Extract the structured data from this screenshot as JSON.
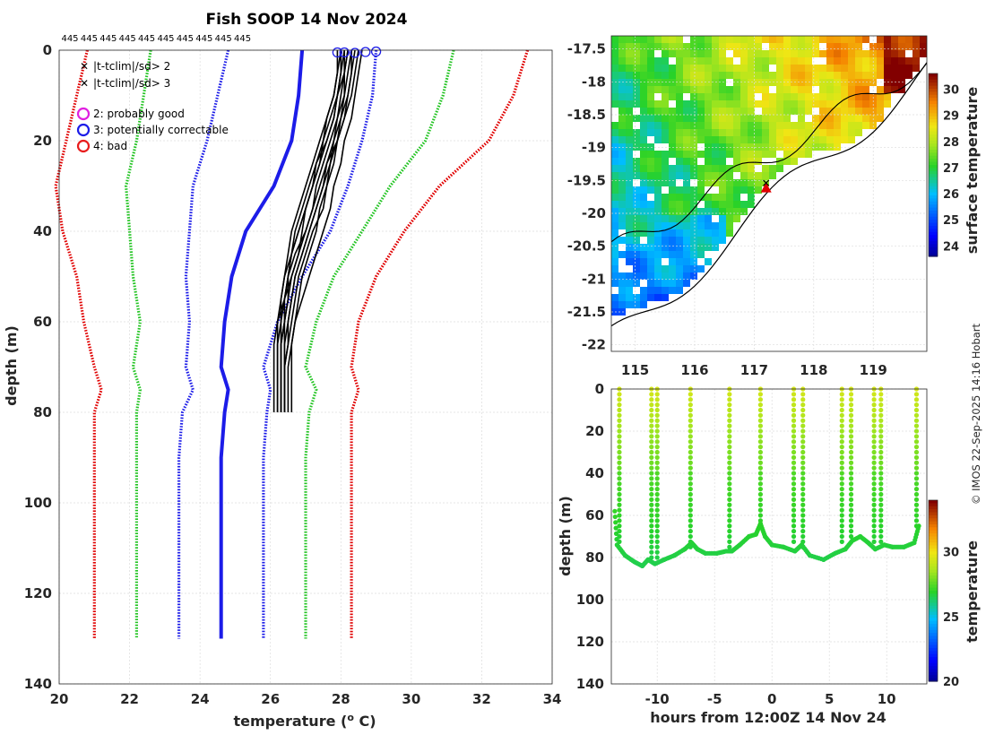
{
  "title": "Fish SOOP 14 Nov 2024",
  "credit": "© IMOS 22-Sep-2025 14:16 Hobart",
  "profile_counts": [
    "445",
    "445",
    "445",
    "445",
    "445",
    "445",
    "445",
    "445",
    "445",
    "445"
  ],
  "legend": {
    "flags": [
      {
        "label": "|t-tclim|/sd> 2",
        "color": "#22c422",
        "marker": "x"
      },
      {
        "label": "|t-tclim|/sd> 3",
        "color": "#e00000",
        "marker": "x"
      }
    ],
    "qc": [
      {
        "label": "2: probably good",
        "color": "#e020e0"
      },
      {
        "label": "3: potentially correctable",
        "color": "#1c1ce8"
      },
      {
        "label": "4: bad",
        "color": "#e81c1c"
      }
    ]
  },
  "map_colorbar": {
    "label": "surface temperature",
    "ticks": [
      "24",
      "25",
      "26",
      "27",
      "28",
      "29",
      "30"
    ],
    "range": [
      23.6,
      30.6
    ]
  },
  "section_colorbar": {
    "label": "temperature",
    "ticks": [
      "20",
      "25",
      "30"
    ],
    "range": [
      20,
      34
    ]
  },
  "chart_data": [
    {
      "type": "line",
      "name": "temperature-profiles",
      "xlabel": "temperature (° C)",
      "ylabel": "depth (m)",
      "xlim": [
        20,
        34
      ],
      "ylim": [
        140,
        0
      ],
      "xticks": [
        "20",
        "22",
        "24",
        "26",
        "28",
        "30",
        "32",
        "34"
      ],
      "yticks": [
        "0",
        "20",
        "40",
        "60",
        "80",
        "100",
        "120",
        "140"
      ],
      "depths": [
        0,
        10,
        20,
        30,
        40,
        50,
        60,
        70,
        75,
        80,
        90,
        100,
        110,
        120,
        130
      ],
      "series": [
        {
          "name": "clim-3sd-low",
          "color": "#e00000",
          "style": "dotted",
          "values": [
            20.8,
            20.5,
            20.2,
            19.9,
            20.1,
            20.5,
            20.7,
            21.0,
            21.2,
            21.0,
            21.0,
            21.0,
            21.0,
            21.0,
            21.0
          ]
        },
        {
          "name": "clim-2sd-low",
          "color": "#22c422",
          "style": "dotted",
          "values": [
            22.6,
            22.4,
            22.2,
            21.9,
            22.0,
            22.1,
            22.3,
            22.1,
            22.3,
            22.2,
            22.2,
            22.2,
            22.2,
            22.2,
            22.2
          ]
        },
        {
          "name": "clim-1sd-low",
          "color": "#1c1ce8",
          "style": "dotted",
          "values": [
            24.8,
            24.5,
            24.2,
            23.8,
            23.7,
            23.6,
            23.7,
            23.6,
            23.8,
            23.5,
            23.4,
            23.4,
            23.4,
            23.4,
            23.4
          ]
        },
        {
          "name": "clim-mean",
          "color": "#1c1ce8",
          "style": "solid",
          "values": [
            26.9,
            26.8,
            26.6,
            26.1,
            25.3,
            24.9,
            24.7,
            24.6,
            24.8,
            24.7,
            24.6,
            24.6,
            24.6,
            24.6,
            24.6
          ]
        },
        {
          "name": "clim-1sd-high",
          "color": "#1c1ce8",
          "style": "dotted",
          "values": [
            29.0,
            28.9,
            28.6,
            28.2,
            27.7,
            26.9,
            26.2,
            25.8,
            26.0,
            25.9,
            25.8,
            25.8,
            25.8,
            25.8,
            25.8
          ]
        },
        {
          "name": "clim-2sd-high",
          "color": "#22c422",
          "style": "dotted",
          "values": [
            31.2,
            30.9,
            30.4,
            29.4,
            28.6,
            27.8,
            27.3,
            27.0,
            27.3,
            27.1,
            27.0,
            27.0,
            27.0,
            27.0,
            27.0
          ]
        },
        {
          "name": "clim-3sd-high",
          "color": "#e00000",
          "style": "dotted",
          "values": [
            33.3,
            32.9,
            32.2,
            30.8,
            29.8,
            29.0,
            28.5,
            28.3,
            28.5,
            28.3,
            28.3,
            28.3,
            28.3,
            28.3,
            28.3
          ]
        }
      ],
      "observed": {
        "color": "#000000",
        "depths": [
          0,
          5,
          10,
          15,
          20,
          25,
          30,
          35,
          40,
          45,
          50,
          55,
          60,
          65,
          70,
          75,
          80
        ],
        "profiles": [
          [
            28.1,
            28.0,
            27.9,
            27.8,
            27.6,
            27.4,
            27.2,
            27.0,
            26.8,
            26.6,
            26.5,
            26.4,
            26.3,
            26.3,
            26.3,
            26.3,
            26.3
          ],
          [
            28.3,
            28.2,
            28.1,
            28.0,
            27.8,
            27.7,
            27.5,
            27.3,
            27.1,
            26.9,
            26.7,
            26.6,
            26.5,
            26.4,
            26.4,
            26.4,
            26.4
          ],
          [
            27.9,
            27.9,
            27.8,
            27.6,
            27.4,
            27.2,
            27.0,
            26.8,
            26.6,
            26.5,
            26.4,
            26.3,
            26.3,
            26.2,
            26.2,
            26.2,
            26.2
          ],
          [
            28.5,
            28.4,
            28.3,
            28.1,
            27.9,
            27.8,
            27.6,
            27.5,
            27.2,
            27.0,
            26.8,
            26.7,
            26.6,
            26.5,
            26.4,
            26.4,
            26.4
          ],
          [
            28.0,
            28.0,
            27.9,
            27.7,
            27.5,
            27.3,
            27.2,
            27.0,
            26.9,
            26.8,
            26.6,
            26.4,
            26.2,
            26.1,
            26.1,
            26.1,
            26.1
          ],
          [
            28.2,
            28.1,
            28.0,
            27.9,
            27.7,
            27.5,
            27.3,
            27.2,
            27.0,
            26.7,
            26.5,
            26.4,
            26.4,
            26.3,
            26.3,
            26.3,
            26.3
          ],
          [
            28.4,
            28.3,
            28.2,
            28.0,
            27.9,
            27.7,
            27.6,
            27.4,
            27.3,
            27.1,
            26.9,
            26.8,
            26.7,
            26.6,
            26.6,
            26.6,
            26.6
          ],
          [
            28.1,
            28.1,
            27.9,
            27.8,
            27.6,
            27.3,
            27.1,
            26.9,
            26.7,
            26.6,
            26.5,
            26.5,
            26.4,
            26.4,
            26.4,
            26.4,
            26.4
          ],
          [
            28.6,
            28.5,
            28.4,
            28.3,
            28.1,
            28.0,
            27.8,
            27.7,
            27.5,
            27.3,
            27.1,
            26.9,
            26.7,
            26.6,
            26.5,
            26.5,
            26.5
          ],
          [
            28.0,
            27.9,
            27.8,
            27.6,
            27.5,
            27.4,
            27.2,
            27.0,
            26.8,
            26.6,
            26.4,
            26.3,
            26.2,
            26.2,
            26.2,
            26.2,
            26.2
          ],
          [
            28.3,
            28.3,
            28.2,
            28.1,
            27.9,
            27.6,
            27.4,
            27.2,
            27.0,
            26.8,
            26.6,
            26.5,
            26.4,
            26.3,
            26.3,
            26.3,
            26.3
          ],
          [
            28.2,
            28.1,
            28.1,
            27.9,
            27.8,
            27.6,
            27.5,
            27.3,
            27.1,
            26.9,
            26.7,
            26.6,
            26.5,
            26.5,
            26.4,
            26.4,
            26.4
          ]
        ],
        "qc_circles": [
          {
            "temp": 27.9,
            "depth": 0.5,
            "flag": 3
          },
          {
            "temp": 28.1,
            "depth": 0.5,
            "flag": 3
          },
          {
            "temp": 28.4,
            "depth": 0.6,
            "flag": 3
          },
          {
            "temp": 28.7,
            "depth": 0.4,
            "flag": 3
          },
          {
            "temp": 29.0,
            "depth": 0.3,
            "flag": 3
          }
        ]
      }
    },
    {
      "type": "heatmap",
      "name": "sst-map",
      "xlim": [
        114.6,
        119.9
      ],
      "ylim": [
        -22.1,
        -17.3
      ],
      "xticks": [
        "115",
        "116",
        "117",
        "118",
        "119"
      ],
      "yticks": [
        "-17.5",
        "-18",
        "-18.5",
        "-19",
        "-19.5",
        "-20",
        "-20.5",
        "-21",
        "-21.5",
        "-22"
      ],
      "value_range": [
        23.6,
        30.6
      ],
      "station": {
        "lon": 117.2,
        "lat": -19.6
      }
    },
    {
      "type": "scatter",
      "name": "depth-time-section",
      "xlabel": "hours from 12:00Z 14 Nov 24",
      "ylabel": "depth (m)",
      "xlim": [
        -14,
        13.5
      ],
      "ylim": [
        140,
        0
      ],
      "xticks": [
        "-10",
        "-5",
        "0",
        "5",
        "10"
      ],
      "yticks": [
        "0",
        "20",
        "40",
        "60",
        "80",
        "100",
        "120",
        "140"
      ],
      "bottom_track": {
        "hours": [
          -13.7,
          -13.5,
          -12.8,
          -12.0,
          -11.3,
          -10.8,
          -10.2,
          -9.4,
          -8.5,
          -7.6,
          -7.0,
          -6.5,
          -5.8,
          -4.8,
          -4.0,
          -3.5,
          -2.8,
          -2.0,
          -1.4,
          -1.0,
          -0.6,
          0.0,
          1.0,
          2.0,
          2.6,
          3.3,
          4.5,
          5.5,
          6.4,
          7.0,
          7.7,
          8.4,
          9.0,
          9.8,
          10.5,
          11.5,
          12.4,
          12.8
        ],
        "depths": [
          58,
          74,
          79,
          82,
          84,
          81,
          83,
          81,
          79,
          76,
          73,
          76,
          78,
          78,
          77,
          77,
          74,
          70,
          69,
          64,
          70,
          74,
          75,
          77,
          74,
          79,
          81,
          78,
          76,
          72,
          70,
          73,
          76,
          74,
          75,
          75,
          73,
          65
        ]
      },
      "casts": [
        {
          "hour": -13.3,
          "bottom": 74
        },
        {
          "hour": -10.5,
          "bottom": 80
        },
        {
          "hour": -10.0,
          "bottom": 82
        },
        {
          "hour": -7.1,
          "bottom": 76
        },
        {
          "hour": -3.7,
          "bottom": 77
        },
        {
          "hour": -1.0,
          "bottom": 64
        },
        {
          "hour": 1.9,
          "bottom": 74
        },
        {
          "hour": 2.7,
          "bottom": 75
        },
        {
          "hour": 6.1,
          "bottom": 74
        },
        {
          "hour": 6.9,
          "bottom": 71
        },
        {
          "hour": 8.9,
          "bottom": 73
        },
        {
          "hour": 9.5,
          "bottom": 74
        },
        {
          "hour": 12.6,
          "bottom": 66
        }
      ]
    }
  ]
}
